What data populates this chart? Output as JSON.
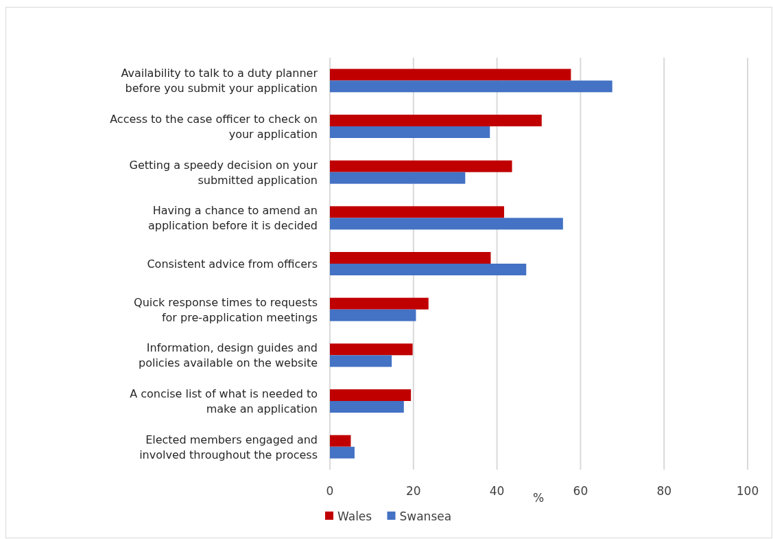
{
  "chart_data": {
    "type": "bar",
    "orientation": "horizontal",
    "xlabel": "%",
    "categories": [
      "Availability to talk to a duty planner\nbefore you submit your application",
      "Access to the case officer to check on\nyour application",
      "Getting a speedy decision on your\nsubmitted application",
      "Having a chance to amend an\napplication before it is decided",
      "Consistent advice from officers",
      "Quick response times to requests\nfor pre-application meetings",
      "Information, design guides and\npolicies available on the website",
      "A concise list of what is needed to\nmake an application",
      "Elected members engaged and\ninvolved throughout the process"
    ],
    "series": [
      {
        "name": "Wales",
        "color": "#c00000",
        "values": [
          57.7,
          50.7,
          43.6,
          41.7,
          38.5,
          23.6,
          19.8,
          19.4,
          5.0
        ]
      },
      {
        "name": "Swansea",
        "color": "#4472c4",
        "values": [
          67.6,
          38.3,
          32.4,
          55.8,
          47.0,
          20.6,
          14.8,
          17.7,
          5.9
        ]
      }
    ],
    "xlim": [
      0,
      100
    ],
    "xticks": [
      0,
      20,
      40,
      60,
      80,
      100
    ],
    "grid": "x",
    "legend": "bottom"
  }
}
